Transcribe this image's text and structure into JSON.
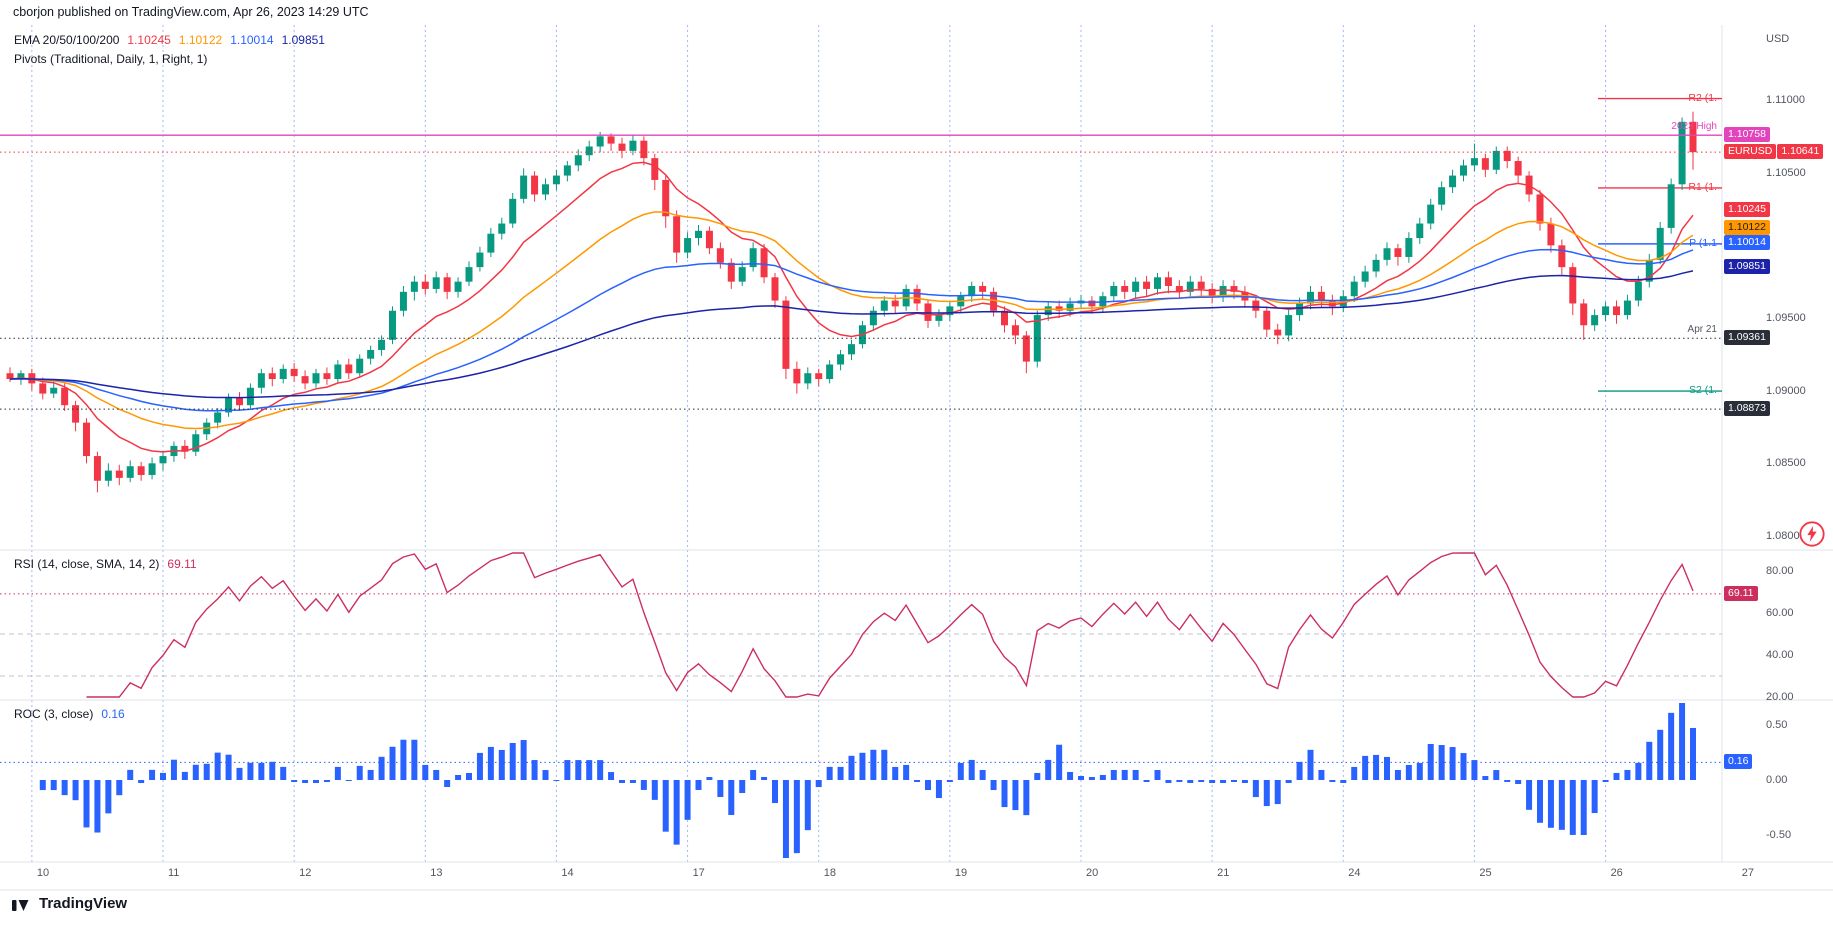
{
  "header": {
    "publisher_line": "cborjon published on TradingView.com, Apr 26, 2023 14:29 UTC"
  },
  "watermark": {
    "logo_text": "TradingView"
  },
  "main_panel": {
    "legend_ema_title": "EMA 20/50/100/200",
    "ema_values": [
      {
        "text": "1.10245",
        "color": "#f23645"
      },
      {
        "text": "1.10122",
        "color": "#ff9800"
      },
      {
        "text": "1.10014",
        "color": "#2962ff"
      },
      {
        "text": "1.09851",
        "color": "#1c23a8"
      }
    ],
    "legend_pivots": "Pivots (Traditional, Daily, 1, Right, 1)",
    "price_scale": {
      "currency": "USD",
      "ticks": [
        {
          "label": "1.11000",
          "value": 1.11
        },
        {
          "label": "1.10500",
          "value": 1.105
        },
        {
          "label": "1.09500",
          "value": 1.095
        },
        {
          "label": "1.09000",
          "value": 1.09
        },
        {
          "label": "1.08500",
          "value": 1.085
        },
        {
          "label": "1.08000",
          "value": 1.08
        }
      ]
    },
    "badges": [
      {
        "text": "1.10758",
        "bg": "#e245bb",
        "fg": "#ffffff",
        "pane": "main",
        "price": 1.10758
      },
      {
        "text": "1.10641",
        "prefix": "EURUSD",
        "bg": "#f23645",
        "fg": "#ffffff",
        "pane": "main",
        "price": 1.10641
      },
      {
        "text": "1.10245",
        "bg": "#f23645",
        "fg": "#ffffff",
        "pane": "main",
        "price": 1.10245
      },
      {
        "text": "1.10122",
        "bg": "#ff9800",
        "fg": "#1c1c1c",
        "pane": "main",
        "price": 1.10122
      },
      {
        "text": "1.10014",
        "bg": "#2962ff",
        "fg": "#ffffff",
        "pane": "main",
        "price": 1.10014
      },
      {
        "text": "1.09851",
        "bg": "#1c23a8",
        "fg": "#ffffff",
        "pane": "main",
        "price": 1.09851
      },
      {
        "text": "1.09361",
        "bg": "#2a2e39",
        "fg": "#ffffff",
        "pane": "main",
        "price": 1.09361
      },
      {
        "text": "1.08873",
        "bg": "#2a2e39",
        "fg": "#ffffff",
        "pane": "main",
        "price": 1.08873
      },
      {
        "text": "69.11",
        "bg": "#cc2f5d",
        "fg": "#ffffff",
        "pane": "rsi",
        "value": 69.11
      },
      {
        "text": "0.16",
        "bg": "#2962ff",
        "fg": "#ffffff",
        "pane": "roc",
        "value": 0.16
      }
    ]
  },
  "rsi_panel": {
    "legend": "RSI (14, close, SMA, 14, 2)",
    "value": "69.11",
    "value_num": 69.11,
    "color": "#cc2f5d",
    "bands": [
      50,
      30
    ],
    "scale": [
      {
        "label": "80.00",
        "value": 80
      },
      {
        "label": "60.00",
        "value": 60
      },
      {
        "label": "40.00",
        "value": 40
      },
      {
        "label": "20.00",
        "value": 20
      }
    ]
  },
  "roc_panel": {
    "legend": "ROC (3, close)",
    "value": "0.16",
    "value_num": 0.16,
    "color": "#2962ff",
    "scale": [
      {
        "label": "0.50",
        "value": 0.5
      },
      {
        "label": "0.00",
        "value": 0
      },
      {
        "label": "-0.50",
        "value": -0.5
      }
    ]
  },
  "chart_data": {
    "type": "candlestick",
    "symbol": "EURUSD",
    "quote_currency": "USD",
    "last_price": 1.10641,
    "up_color": "#089981",
    "down_color": "#f23645",
    "day_labels": [
      "10",
      "11",
      "12",
      "13",
      "14",
      "17",
      "18",
      "19",
      "20",
      "21",
      "24",
      "25",
      "26",
      "27"
    ],
    "candles_per_day": 12,
    "pre_session_candles": 2,
    "emas": {
      "legend": "EMA 20/50/100/200",
      "periods": [
        20,
        50,
        100,
        200
      ],
      "colors": [
        "#f23645",
        "#ff9800",
        "#2962ff",
        "#1c23a8"
      ],
      "values": [
        1.10245,
        1.10122,
        1.10014,
        1.09851
      ]
    },
    "pivot_lines": [
      {
        "label": "R2 (1.",
        "price": 1.1101,
        "color": "#f23645"
      },
      {
        "label": "R1 (1.",
        "price": 1.10395,
        "color": "#f23645"
      },
      {
        "label": "P (1.1",
        "price": 1.1001,
        "color": "#2962ff"
      },
      {
        "label": "S2 (1.",
        "price": 1.08997,
        "color": "#089981"
      }
    ],
    "level_lines": [
      {
        "price": 1.10758,
        "color": "#e245bb",
        "style": "solid",
        "label": "2023 High",
        "label_color": "#e245bb"
      },
      {
        "price": 1.10641,
        "color": "#f23645",
        "style": "dotted"
      },
      {
        "price": 1.09361,
        "color": "#2a2e39",
        "style": "dotted",
        "label": "Apr 21",
        "label_color": "#51555f"
      },
      {
        "price": 1.08873,
        "color": "#2a2e39",
        "style": "dotted"
      }
    ],
    "rsi": {
      "period": 14,
      "value": 69.11
    },
    "roc": {
      "period": 3,
      "value": 0.16
    },
    "candles": [
      [
        1.0912,
        1.0916,
        1.0906,
        1.0908
      ],
      [
        1.0908,
        1.0914,
        1.0904,
        1.0912
      ],
      [
        1.0912,
        1.0915,
        1.09,
        1.0905
      ],
      [
        1.0905,
        1.0909,
        1.0894,
        1.0898
      ],
      [
        1.0898,
        1.0907,
        1.0895,
        1.0902
      ],
      [
        1.0902,
        1.0905,
        1.0886,
        1.089
      ],
      [
        1.089,
        1.0893,
        1.0872,
        1.0878
      ],
      [
        1.0878,
        1.0881,
        1.085,
        1.0855
      ],
      [
        1.0855,
        1.0858,
        1.083,
        1.0838
      ],
      [
        1.0838,
        1.085,
        1.0834,
        1.0845
      ],
      [
        1.0845,
        1.0849,
        1.0835,
        1.084
      ],
      [
        1.084,
        1.0852,
        1.0837,
        1.0848
      ],
      [
        1.0848,
        1.0851,
        1.0838,
        1.0842
      ],
      [
        1.0842,
        1.0854,
        1.0839,
        1.085
      ],
      [
        1.085,
        1.0858,
        1.0845,
        1.0855
      ],
      [
        1.0855,
        1.0865,
        1.0851,
        1.0862
      ],
      [
        1.0862,
        1.0866,
        1.0853,
        1.0858
      ],
      [
        1.0858,
        1.0873,
        1.0855,
        1.087
      ],
      [
        1.087,
        1.0881,
        1.0866,
        1.0878
      ],
      [
        1.0878,
        1.0888,
        1.0874,
        1.0885
      ],
      [
        1.0885,
        1.0898,
        1.0882,
        1.0895
      ],
      [
        1.0895,
        1.0899,
        1.0886,
        1.089
      ],
      [
        1.089,
        1.0905,
        1.0887,
        1.0902
      ],
      [
        1.0902,
        1.0915,
        1.0898,
        1.0912
      ],
      [
        1.0912,
        1.0916,
        1.0903,
        1.0908
      ],
      [
        1.0908,
        1.0918,
        1.0905,
        1.0915
      ],
      [
        1.0915,
        1.0919,
        1.0906,
        1.091
      ],
      [
        1.091,
        1.0914,
        1.0901,
        1.0905
      ],
      [
        1.0905,
        1.0915,
        1.0902,
        1.0912
      ],
      [
        1.0912,
        1.0916,
        1.0904,
        1.0908
      ],
      [
        1.0908,
        1.0921,
        1.0905,
        1.0918
      ],
      [
        1.0918,
        1.0922,
        1.0908,
        1.0912
      ],
      [
        1.0912,
        1.0925,
        1.0909,
        1.0922
      ],
      [
        1.0922,
        1.0931,
        1.0918,
        1.0928
      ],
      [
        1.0928,
        1.0938,
        1.0924,
        1.0935
      ],
      [
        1.0935,
        1.0958,
        1.0932,
        1.0955
      ],
      [
        1.0955,
        1.0972,
        1.0951,
        1.0968
      ],
      [
        1.0968,
        1.0979,
        1.0962,
        1.0975
      ],
      [
        1.0975,
        1.098,
        1.0966,
        1.097
      ],
      [
        1.097,
        1.0982,
        1.0967,
        1.0978
      ],
      [
        1.0978,
        1.0981,
        1.0963,
        1.0968
      ],
      [
        1.0968,
        1.0978,
        1.0964,
        1.0975
      ],
      [
        1.0975,
        1.0989,
        1.0972,
        1.0985
      ],
      [
        1.0985,
        1.0999,
        1.0982,
        1.0995
      ],
      [
        1.0995,
        1.1012,
        1.0992,
        1.1008
      ],
      [
        1.1008,
        1.1019,
        1.1004,
        1.1015
      ],
      [
        1.1015,
        1.1036,
        1.1012,
        1.1032
      ],
      [
        1.1032,
        1.1053,
        1.1029,
        1.1048
      ],
      [
        1.1048,
        1.1051,
        1.103,
        1.1035
      ],
      [
        1.1035,
        1.1046,
        1.1031,
        1.1042
      ],
      [
        1.1042,
        1.1052,
        1.1038,
        1.1048
      ],
      [
        1.1048,
        1.1058,
        1.1044,
        1.1055
      ],
      [
        1.1055,
        1.1066,
        1.1051,
        1.1062
      ],
      [
        1.1062,
        1.1072,
        1.1058,
        1.1068
      ],
      [
        1.1068,
        1.1078,
        1.1064,
        1.1075
      ],
      [
        1.1075,
        1.1077,
        1.1065,
        1.107
      ],
      [
        1.107,
        1.1074,
        1.106,
        1.1065
      ],
      [
        1.1065,
        1.1076,
        1.1062,
        1.1072
      ],
      [
        1.1072,
        1.1075,
        1.1055,
        1.106
      ],
      [
        1.106,
        1.1063,
        1.1038,
        1.1045
      ],
      [
        1.1045,
        1.1048,
        1.1012,
        1.102
      ],
      [
        1.102,
        1.1024,
        1.0988,
        1.0995
      ],
      [
        1.0995,
        1.1009,
        1.0991,
        1.1005
      ],
      [
        1.1005,
        1.1014,
        1.1,
        1.101
      ],
      [
        1.101,
        1.1013,
        1.0994,
        1.0998
      ],
      [
        1.0998,
        1.1002,
        1.0984,
        1.0988
      ],
      [
        1.0988,
        1.0991,
        1.097,
        1.0975
      ],
      [
        1.0975,
        1.0989,
        1.0972,
        1.0985
      ],
      [
        1.0985,
        1.1002,
        1.0982,
        1.0998
      ],
      [
        1.0998,
        1.1001,
        1.0974,
        1.0978
      ],
      [
        1.0978,
        1.0981,
        1.0957,
        1.0962
      ],
      [
        1.0962,
        1.0965,
        1.0908,
        1.0915
      ],
      [
        1.0915,
        1.092,
        1.0898,
        1.0905
      ],
      [
        1.0905,
        1.0916,
        1.0901,
        1.0912
      ],
      [
        1.0912,
        1.0915,
        1.0903,
        1.0908
      ],
      [
        1.0908,
        1.0921,
        1.0905,
        1.0918
      ],
      [
        1.0918,
        1.0928,
        1.0914,
        1.0925
      ],
      [
        1.0925,
        1.0935,
        1.0921,
        1.0932
      ],
      [
        1.0932,
        1.0948,
        1.0929,
        1.0945
      ],
      [
        1.0945,
        1.0958,
        1.0941,
        1.0955
      ],
      [
        1.0955,
        1.0965,
        1.0951,
        1.0962
      ],
      [
        1.0962,
        1.0966,
        1.0953,
        1.0958
      ],
      [
        1.0958,
        1.0973,
        1.0955,
        1.097
      ],
      [
        1.097,
        1.0973,
        1.0955,
        1.096
      ],
      [
        1.096,
        1.0963,
        1.0943,
        1.0948
      ],
      [
        1.0948,
        1.0956,
        1.0944,
        1.0952
      ],
      [
        1.0952,
        1.0961,
        1.0948,
        1.0958
      ],
      [
        1.0958,
        1.0968,
        1.0954,
        1.0965
      ],
      [
        1.0965,
        1.0975,
        1.0961,
        1.0972
      ],
      [
        1.0972,
        1.0975,
        1.0963,
        1.0968
      ],
      [
        1.0968,
        1.0971,
        1.0951,
        1.0955
      ],
      [
        1.0955,
        1.0958,
        1.094,
        1.0945
      ],
      [
        1.0945,
        1.0949,
        1.0932,
        1.0938
      ],
      [
        1.0938,
        1.0941,
        1.0912,
        1.092
      ],
      [
        1.092,
        1.0955,
        1.0916,
        1.0952
      ],
      [
        1.0952,
        1.0961,
        1.0948,
        1.0958
      ],
      [
        1.0958,
        1.0962,
        1.095,
        1.0955
      ],
      [
        1.0955,
        1.0964,
        1.0951,
        1.096
      ],
      [
        1.096,
        1.0966,
        1.0956,
        1.0962
      ],
      [
        1.0962,
        1.0965,
        1.0953,
        1.0958
      ],
      [
        1.0958,
        1.0968,
        1.0954,
        1.0965
      ],
      [
        1.0965,
        1.0975,
        1.0961,
        1.0972
      ],
      [
        1.0972,
        1.0976,
        1.0963,
        1.0968
      ],
      [
        1.0968,
        1.0978,
        1.0964,
        1.0975
      ],
      [
        1.0975,
        1.0979,
        1.0965,
        1.097
      ],
      [
        1.097,
        1.0981,
        1.0966,
        1.0978
      ],
      [
        1.0978,
        1.0982,
        1.0967,
        1.0972
      ],
      [
        1.0972,
        1.0976,
        1.0963,
        1.0968
      ],
      [
        1.0968,
        1.0979,
        1.0964,
        1.0975
      ],
      [
        1.0975,
        1.0979,
        1.0965,
        1.097
      ],
      [
        1.097,
        1.0974,
        1.096,
        1.0965
      ],
      [
        1.0965,
        1.0976,
        1.0961,
        1.0972
      ],
      [
        1.0972,
        1.0976,
        1.0963,
        1.0968
      ],
      [
        1.0968,
        1.0972,
        1.0957,
        1.0962
      ],
      [
        1.0962,
        1.0965,
        1.095,
        1.0955
      ],
      [
        1.0955,
        1.0958,
        1.0937,
        1.0942
      ],
      [
        1.0942,
        1.0946,
        1.0932,
        1.0938
      ],
      [
        1.0938,
        1.0956,
        1.0934,
        1.0952
      ],
      [
        1.0952,
        1.0964,
        1.0948,
        1.096
      ],
      [
        1.096,
        1.0972,
        1.0956,
        1.0968
      ],
      [
        1.0968,
        1.0972,
        1.0957,
        1.0962
      ],
      [
        1.0962,
        1.0966,
        1.0952,
        1.0958
      ],
      [
        1.0958,
        1.0969,
        1.0954,
        1.0965
      ],
      [
        1.0965,
        1.0979,
        1.0961,
        1.0975
      ],
      [
        1.0975,
        1.0986,
        1.0971,
        1.0982
      ],
      [
        1.0982,
        1.0994,
        1.0978,
        1.099
      ],
      [
        1.099,
        1.1002,
        1.0986,
        1.0998
      ],
      [
        1.0998,
        1.1001,
        1.0986,
        1.0992
      ],
      [
        1.0992,
        1.1009,
        1.0988,
        1.1005
      ],
      [
        1.1005,
        1.1019,
        1.1001,
        1.1015
      ],
      [
        1.1015,
        1.1032,
        1.1011,
        1.1028
      ],
      [
        1.1028,
        1.1044,
        1.1024,
        1.104
      ],
      [
        1.104,
        1.1052,
        1.1036,
        1.1048
      ],
      [
        1.1048,
        1.1059,
        1.1044,
        1.1055
      ],
      [
        1.1055,
        1.107,
        1.1051,
        1.106
      ],
      [
        1.106,
        1.1063,
        1.1047,
        1.1052
      ],
      [
        1.1052,
        1.1068,
        1.1049,
        1.1065
      ],
      [
        1.1065,
        1.1068,
        1.1053,
        1.1058
      ],
      [
        1.1058,
        1.1061,
        1.1043,
        1.1048
      ],
      [
        1.1048,
        1.1051,
        1.103,
        1.1035
      ],
      [
        1.1035,
        1.1038,
        1.101,
        1.1015
      ],
      [
        1.1015,
        1.1019,
        1.0995,
        1.1
      ],
      [
        1.1,
        1.1004,
        1.098,
        1.0985
      ],
      [
        1.0985,
        1.0988,
        1.0952,
        1.096
      ],
      [
        1.096,
        1.0963,
        1.0935,
        1.0945
      ],
      [
        1.0945,
        1.0956,
        1.0941,
        1.0952
      ],
      [
        1.0952,
        1.0961,
        1.0948,
        1.0958
      ],
      [
        1.0958,
        1.0962,
        1.0946,
        1.0952
      ],
      [
        1.0952,
        1.0966,
        1.0949,
        1.0962
      ],
      [
        1.0962,
        1.0979,
        1.0958,
        1.0975
      ],
      [
        1.0975,
        1.0994,
        1.0971,
        1.099
      ],
      [
        1.099,
        1.1016,
        1.0987,
        1.1012
      ],
      [
        1.1012,
        1.1046,
        1.1008,
        1.1042
      ],
      [
        1.1042,
        1.1088,
        1.1038,
        1.1085
      ],
      [
        1.1085,
        1.1092,
        1.1052,
        1.10641
      ]
    ]
  }
}
